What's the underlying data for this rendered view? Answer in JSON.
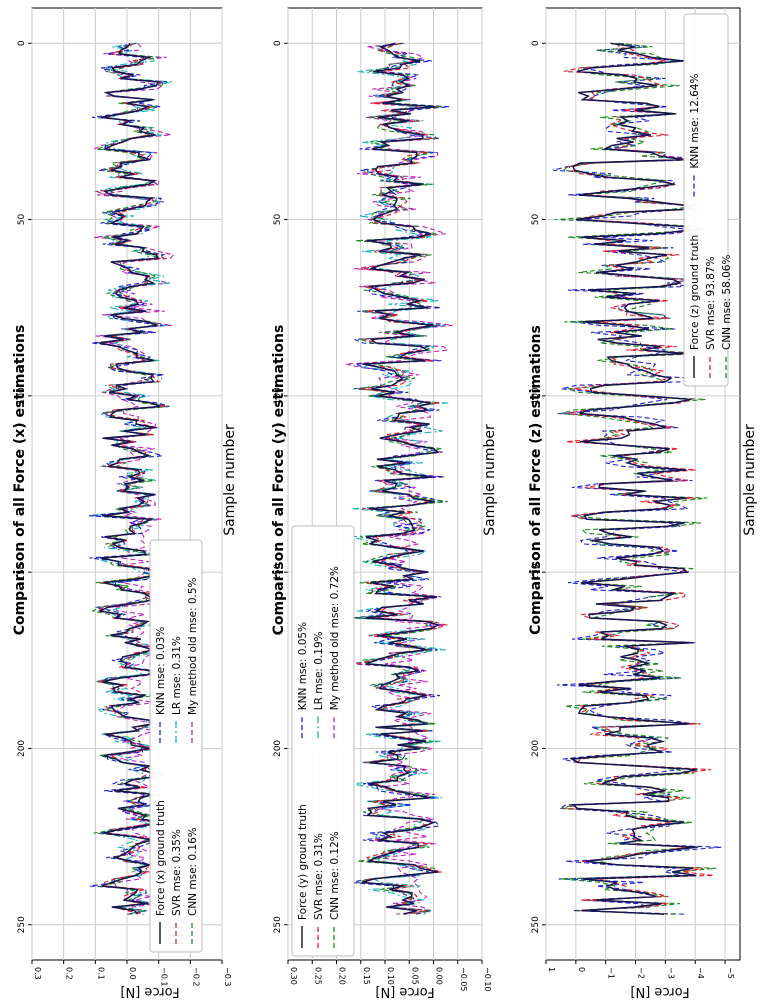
{
  "chart_data": [
    {
      "type": "line",
      "title": "Comparison of all Force (x) estimations",
      "xlabel": "Sample number",
      "ylabel": "Force [N]",
      "xlim": [
        -10,
        260
      ],
      "ylim": [
        -0.3,
        0.3
      ],
      "x_ticks": [
        0,
        50,
        100,
        150,
        200,
        250
      ],
      "x_tick_labels": [
        "0",
        "50",
        "100",
        "150",
        "200",
        "250"
      ],
      "y_ticks": [
        -0.3,
        -0.2,
        -0.1,
        0.0,
        0.1,
        0.2,
        0.3
      ],
      "y_tick_labels": [
        "−0.3",
        "−0.2",
        "−0.1",
        "0.0",
        "0.1",
        "0.2",
        "0.3"
      ],
      "grid": true,
      "legend_position": "lower-left",
      "signal": {
        "amplitude": 0.07,
        "offset": -0.01,
        "seed": 11
      },
      "series": [
        {
          "name": "Force (x) ground truth",
          "color": "#000000",
          "style": "solid"
        },
        {
          "name": "SVR mse: 0.35%",
          "color": "#e8192c",
          "style": "dashed"
        },
        {
          "name": "CNN mse: 0.16%",
          "color": "#1a8a1a",
          "style": "dashed"
        },
        {
          "name": "KNN mse: 0.03%",
          "color": "#1f1fd6",
          "style": "dashed"
        },
        {
          "name": "LR mse: 0.31%",
          "color": "#18b4b4",
          "style": "dashdot"
        },
        {
          "name": "My method old mse: 0.5%",
          "color": "#c21fc2",
          "style": "dashed"
        }
      ]
    },
    {
      "type": "line",
      "title": "Comparison of all Force (y) estimations",
      "xlabel": "Sample number",
      "ylabel": "Force [N]",
      "xlim": [
        -10,
        260
      ],
      "ylim": [
        -0.1,
        0.3
      ],
      "x_ticks": [
        0,
        50,
        100,
        150,
        200,
        250
      ],
      "x_tick_labels": [
        "0",
        "50",
        "100",
        "150",
        "200",
        "250"
      ],
      "y_ticks": [
        -0.1,
        -0.05,
        0.0,
        0.05,
        0.1,
        0.15,
        0.2,
        0.25,
        0.3
      ],
      "y_tick_labels": [
        "−0.10",
        "−0.05",
        "0.00",
        "0.05",
        "0.10",
        "0.15",
        "0.20",
        "0.25",
        "0.30"
      ],
      "grid": true,
      "legend_position": "lower-left",
      "signal": {
        "amplitude": 0.06,
        "offset": 0.07,
        "seed": 23
      },
      "series": [
        {
          "name": "Force (y) ground truth",
          "color": "#000000",
          "style": "solid"
        },
        {
          "name": "SVR mse: 0.31%",
          "color": "#e8192c",
          "style": "dashed"
        },
        {
          "name": "CNN mse: 0.12%",
          "color": "#1a8a1a",
          "style": "dashed"
        },
        {
          "name": "KNN mse: 0.05%",
          "color": "#1f1fd6",
          "style": "dashed"
        },
        {
          "name": "LR mse: 0.19%",
          "color": "#18b4b4",
          "style": "dashdot"
        },
        {
          "name": "My method old mse: 0.72%",
          "color": "#c21fc2",
          "style": "dashed"
        }
      ]
    },
    {
      "type": "line",
      "title": "Comparison of all Force (z) estimations",
      "xlabel": "Sample number",
      "ylabel": "Force [N]",
      "xlim": [
        -10,
        260
      ],
      "ylim": [
        -5.5,
        1
      ],
      "x_ticks": [
        0,
        50,
        100,
        150,
        200,
        250
      ],
      "x_tick_labels": [
        "0",
        "50",
        "100",
        "150",
        "200",
        "250"
      ],
      "y_ticks": [
        -5,
        -4,
        -3,
        -2,
        -1,
        0,
        1
      ],
      "y_tick_labels": [
        "−5",
        "−4",
        "−3",
        "−2",
        "−1",
        "0",
        "1"
      ],
      "grid": true,
      "legend_position": "upper-right",
      "signal": {
        "amplitude": 1.6,
        "offset": -2.0,
        "seed": 37
      },
      "series": [
        {
          "name": "Force (z) ground truth",
          "color": "#000000",
          "style": "solid"
        },
        {
          "name": "SVR mse: 93.87%",
          "color": "#e8192c",
          "style": "dashed"
        },
        {
          "name": "CNN mse: 58.06%",
          "color": "#1a8a1a",
          "style": "dashed"
        },
        {
          "name": "KNN mse: 12.64%",
          "color": "#1f1fd6",
          "style": "dashed"
        }
      ]
    }
  ]
}
